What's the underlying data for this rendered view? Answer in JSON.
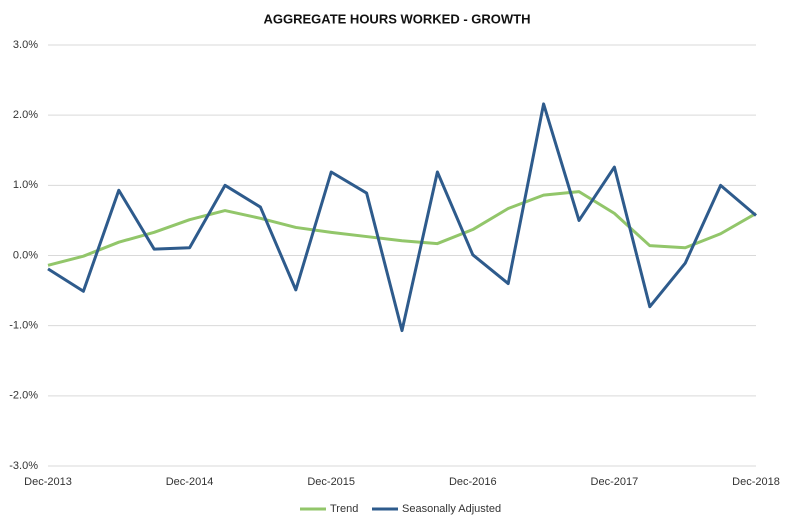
{
  "chart_data": {
    "type": "line",
    "title": "AGGREGATE HOURS WORKED - GROWTH",
    "categories": [
      "Dec-2013",
      null,
      null,
      null,
      "Dec-2014",
      null,
      null,
      null,
      "Dec-2015",
      null,
      null,
      null,
      "Dec-2016",
      null,
      null,
      null,
      "Dec-2017",
      null,
      null,
      null,
      "Dec-2018"
    ],
    "series": [
      {
        "name": "Trend",
        "color": "#92c66a",
        "values": [
          -0.14,
          -0.01,
          0.19,
          0.33,
          0.51,
          0.64,
          0.53,
          0.4,
          0.33,
          0.27,
          0.21,
          0.17,
          0.37,
          0.67,
          0.86,
          0.91,
          0.6,
          0.14,
          0.11,
          0.31,
          0.6
        ]
      },
      {
        "name": "Seasonally Adjusted",
        "color": "#2e5b8c",
        "values": [
          -0.19,
          -0.51,
          0.93,
          0.09,
          0.11,
          1.0,
          0.69,
          -0.49,
          1.19,
          0.89,
          -1.07,
          1.19,
          0.01,
          -0.4,
          2.16,
          0.5,
          1.26,
          -0.73,
          -0.11,
          1.0,
          0.57
        ]
      }
    ],
    "ylim": [
      -3,
      3
    ],
    "yticks": [
      {
        "value": -3,
        "label": "-3.0%"
      },
      {
        "value": -2,
        "label": "-2.0%"
      },
      {
        "value": -1,
        "label": "-1.0%"
      },
      {
        "value": 0,
        "label": "0.0%"
      },
      {
        "value": 1,
        "label": "1.0%"
      },
      {
        "value": 2,
        "label": "2.0%"
      },
      {
        "value": 3,
        "label": "3.0%"
      }
    ],
    "grid": true,
    "legend": "bottom"
  }
}
